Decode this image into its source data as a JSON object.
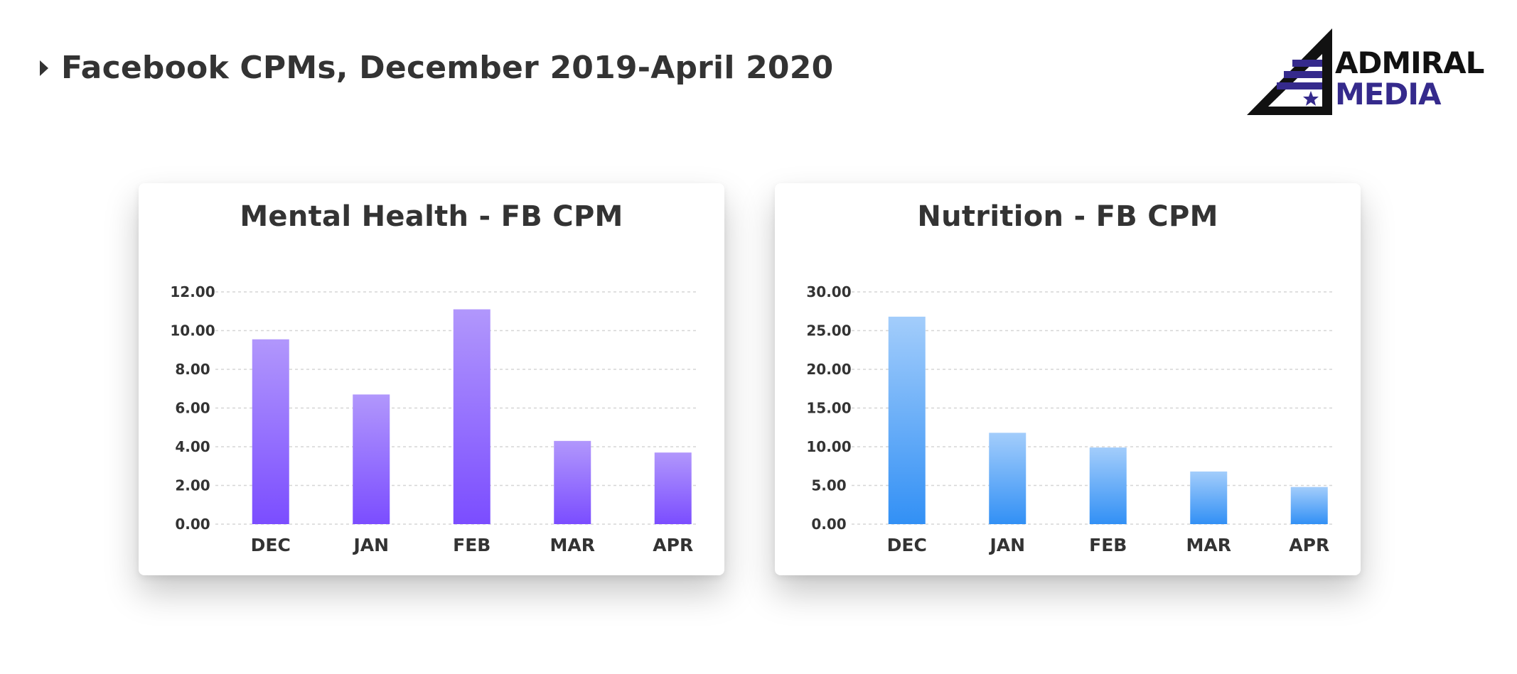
{
  "header": {
    "title": "Facebook CPMs, December 2019-April 2020"
  },
  "logo": {
    "line1": "ADMIRAL",
    "line2": "MEDIA"
  },
  "colors": {
    "purple_top": "#b197fc",
    "purple_bottom": "#7b4dff",
    "blue_top": "#a3cdfb",
    "blue_bottom": "#3290f5",
    "logo_navy": "#352a8c"
  },
  "chart_data": [
    {
      "type": "bar",
      "title": "Mental Health - FB CPM",
      "categories": [
        "DEC",
        "JAN",
        "FEB",
        "MAR",
        "APR"
      ],
      "values": [
        9.55,
        6.7,
        11.1,
        4.3,
        3.7
      ],
      "ylim": [
        0,
        12
      ],
      "yticks": [
        "0.00",
        "2.00",
        "4.00",
        "6.00",
        "8.00",
        "10.00",
        "12.00"
      ],
      "grid": true,
      "legend": "none",
      "color": "purple"
    },
    {
      "type": "bar",
      "title": "Nutrition - FB CPM",
      "categories": [
        "DEC",
        "JAN",
        "FEB",
        "MAR",
        "APR"
      ],
      "values": [
        26.8,
        11.8,
        9.9,
        6.8,
        4.8
      ],
      "ylim": [
        0,
        30
      ],
      "yticks": [
        "0.00",
        "5.00",
        "10.00",
        "15.00",
        "20.00",
        "25.00",
        "30.00"
      ],
      "grid": true,
      "legend": "none",
      "color": "blue"
    }
  ]
}
